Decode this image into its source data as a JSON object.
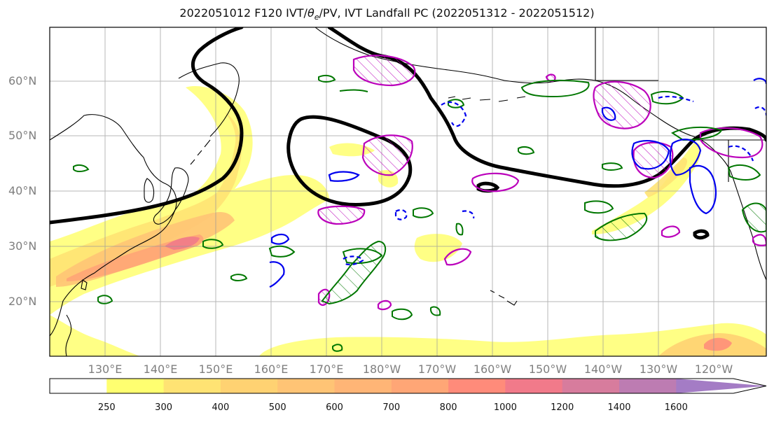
{
  "title": "2022051012 F120 IVT/θe/PV, IVT Landfall PC (2022051312 - 2022051512)",
  "title_parts": {
    "prefix": "2022051012 F120 IVT/",
    "theta": "θ",
    "theta_sub": "e",
    "suffix": "/PV, IVT Landfall PC (2022051312 - 2022051512)"
  },
  "lat_labels": [
    "60°N",
    "50°N",
    "40°N",
    "30°N",
    "20°N"
  ],
  "lon_labels": [
    "130°E",
    "140°E",
    "150°E",
    "160°E",
    "170°E",
    "180°W",
    "170°W",
    "160°W",
    "150°W",
    "140°W",
    "130°W",
    "120°W"
  ],
  "colorbar": {
    "levels": [
      "250",
      "300",
      "400",
      "500",
      "600",
      "700",
      "800",
      "1000",
      "1200",
      "1400",
      "1600"
    ],
    "colors": [
      "#ffffff",
      "#ffff70",
      "#ffe373",
      "#ffd272",
      "#ffc475",
      "#ffb576",
      "#ffa676",
      "#ff8b7a",
      "#f17a8a",
      "#d77c9d",
      "#bd7cb2",
      "#a47cc5"
    ],
    "extend": "max"
  },
  "colors": {
    "jet_contour": "#000000",
    "pv_outline": "#bb00bb",
    "theta_positive": "#007700",
    "theta_negative": "#0000ee",
    "gridline": "#999999",
    "coastline": "#000000"
  }
}
